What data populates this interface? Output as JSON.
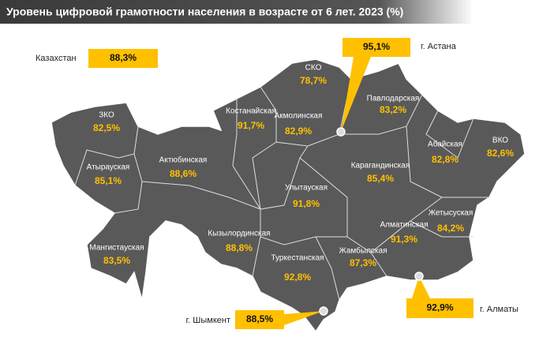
{
  "title": "Уровень цифровой грамотности населения в возрасте от 6 лет. 2023 (%)",
  "country": {
    "name": "Казахстан",
    "value": "88,3%"
  },
  "regions": [
    {
      "name": "СКО",
      "value": "78,7%"
    },
    {
      "name": "Костанайская",
      "value": "91,7%"
    },
    {
      "name": "Акмолинская",
      "value": "82,9%"
    },
    {
      "name": "Павлодарская",
      "value": "83,2%"
    },
    {
      "name": "ЗКО",
      "value": "82,5%"
    },
    {
      "name": "ВКО",
      "value": "82,6%"
    },
    {
      "name": "Абайская",
      "value": "82,8%"
    },
    {
      "name": "Атырауская",
      "value": "85,1%"
    },
    {
      "name": "Актюбинская",
      "value": "88,6%"
    },
    {
      "name": "Карагандинская",
      "value": "85,4%"
    },
    {
      "name": "Улытауская",
      "value": "91,8%"
    },
    {
      "name": "Жетысуская",
      "value": "84,2%"
    },
    {
      "name": "Алматинская",
      "value": "91,3%"
    },
    {
      "name": "Мангистауская",
      "value": "83,5%"
    },
    {
      "name": "Кызылординская",
      "value": "88,8%"
    },
    {
      "name": "Жамбылская",
      "value": "87,3%"
    },
    {
      "name": "Туркестанская",
      "value": "92,8%"
    }
  ],
  "cities": [
    {
      "name": "г. Астана",
      "value": "95,1%"
    },
    {
      "name": "г. Алматы",
      "value": "92,9%"
    },
    {
      "name": "г. Шымкент",
      "value": "88,5%"
    }
  ]
}
